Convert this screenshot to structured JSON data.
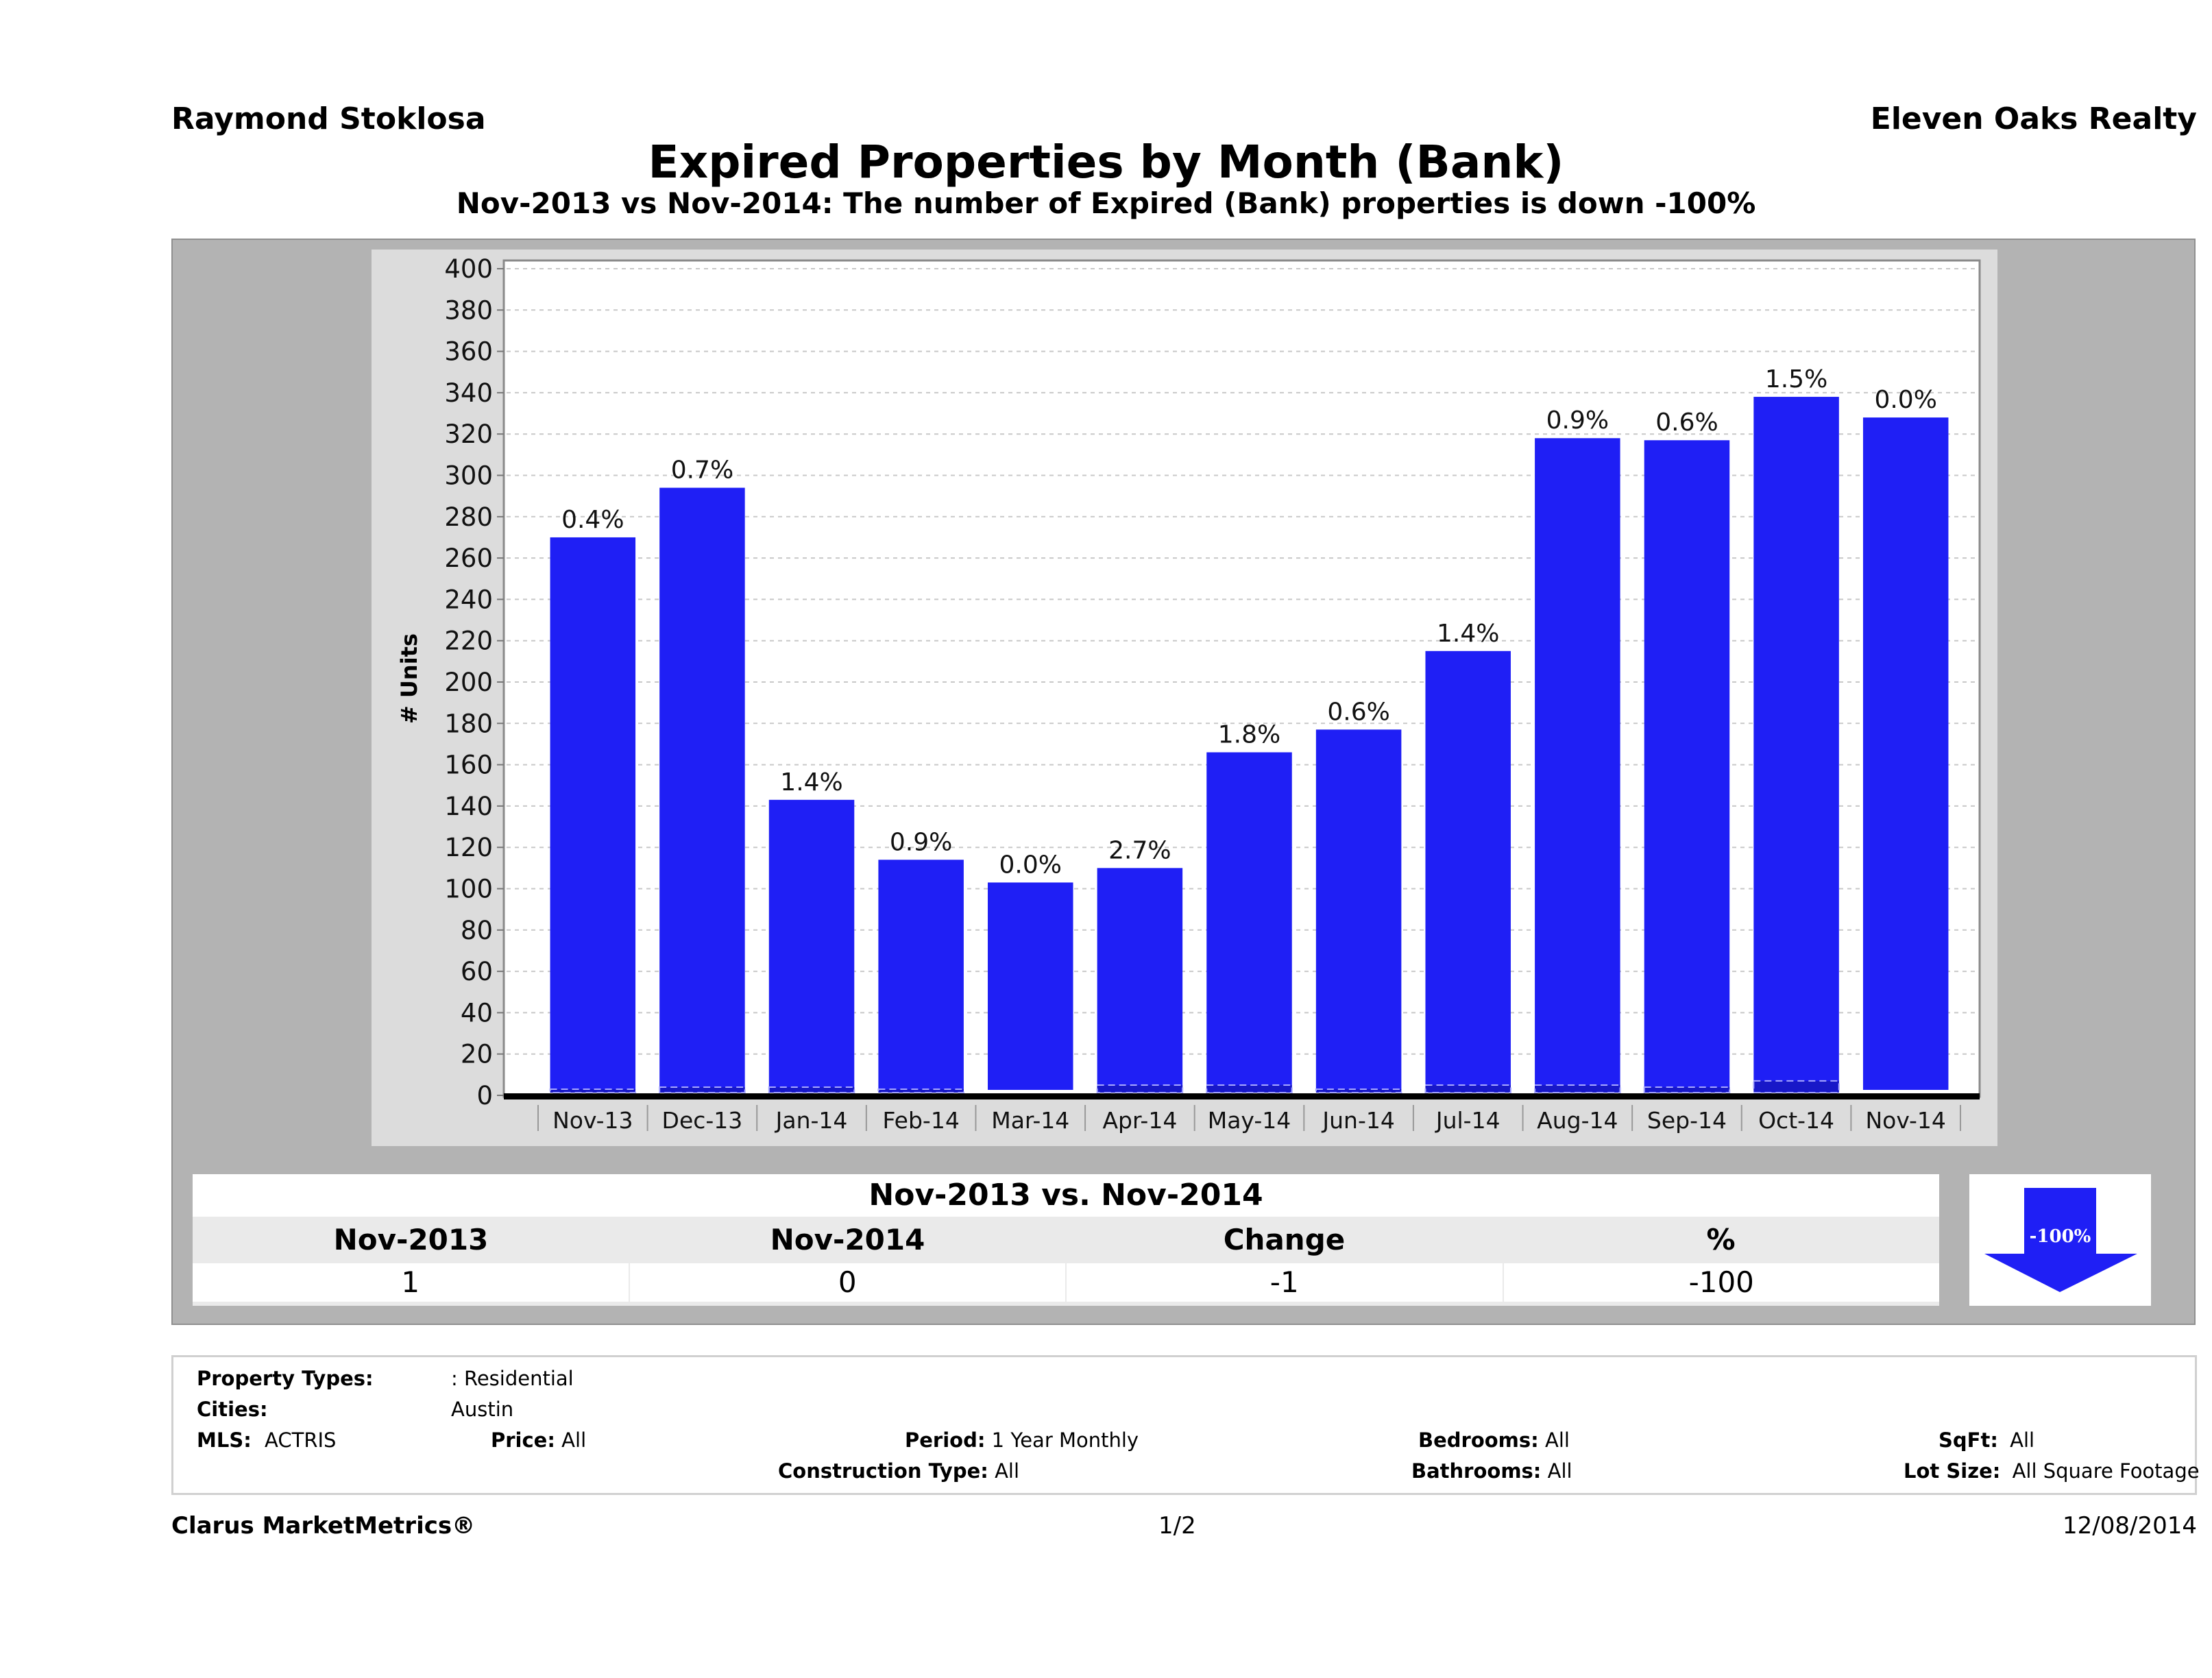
{
  "header": {
    "agent_name": "Raymond Stoklosa",
    "company": "Eleven Oaks Realty",
    "title": "Expired Properties by Month (Bank)",
    "subtitle": "Nov-2013 vs Nov-2014: The number of Expired (Bank)  properties is down -100%"
  },
  "chart_data": {
    "type": "bar",
    "title": "Expired Properties by Month (Bank)",
    "xlabel": "",
    "ylabel": "# Units",
    "ylim": [
      0,
      400
    ],
    "yticks": [
      0,
      20,
      40,
      60,
      80,
      100,
      120,
      140,
      160,
      180,
      200,
      220,
      240,
      260,
      280,
      300,
      320,
      340,
      360,
      380,
      400
    ],
    "grid": true,
    "categories": [
      "Nov-13",
      "Dec-13",
      "Jan-14",
      "Feb-14",
      "Mar-14",
      "Apr-14",
      "May-14",
      "Jun-14",
      "Jul-14",
      "Aug-14",
      "Sep-14",
      "Oct-14",
      "Nov-14"
    ],
    "series": [
      {
        "name": "Expired",
        "color": "#1f1ff5",
        "values": [
          270,
          294,
          143,
          114,
          103,
          110,
          166,
          177,
          215,
          318,
          317,
          338,
          328
        ]
      },
      {
        "name": "Bank",
        "color": "#1f1ff5",
        "values": [
          1,
          2,
          2,
          1,
          0,
          3,
          3,
          1,
          3,
          3,
          2,
          5,
          0
        ]
      }
    ],
    "data_labels": [
      "0.4%",
      "0.7%",
      "1.4%",
      "0.9%",
      "0.0%",
      "2.7%",
      "1.8%",
      "0.6%",
      "1.4%",
      "0.9%",
      "0.6%",
      "1.5%",
      "0.0%"
    ]
  },
  "comparison": {
    "caption": "Nov-2013 vs. Nov-2014",
    "columns": [
      "Nov-2013",
      "Nov-2014",
      "Change",
      "%"
    ],
    "values": [
      "1",
      "0",
      "-1",
      "-100"
    ],
    "badge": "-100%",
    "badge_color": "#1f1ff5"
  },
  "params": {
    "property_types_label": "Property Types:",
    "property_types_value": ": Residential",
    "cities_label": "Cities:",
    "cities_value": "Austin",
    "mls_label": "MLS:",
    "mls_value": "ACTRIS",
    "price_label": "Price:",
    "price_value": "All",
    "period_label": "Period:",
    "period_value": "1 Year Monthly",
    "construction_label": "Construction Type:",
    "construction_value": "All",
    "bedrooms_label": "Bedrooms:",
    "bedrooms_value": "All",
    "bathrooms_label": "Bathrooms:",
    "bathrooms_value": "All",
    "sqft_label": "SqFt:",
    "sqft_value": "All",
    "lotsize_label": "Lot Size:",
    "lotsize_value": "All Square Footage"
  },
  "footer": {
    "brand": "Clarus MarketMetrics®",
    "page": "1/2",
    "date": "12/08/2014"
  }
}
